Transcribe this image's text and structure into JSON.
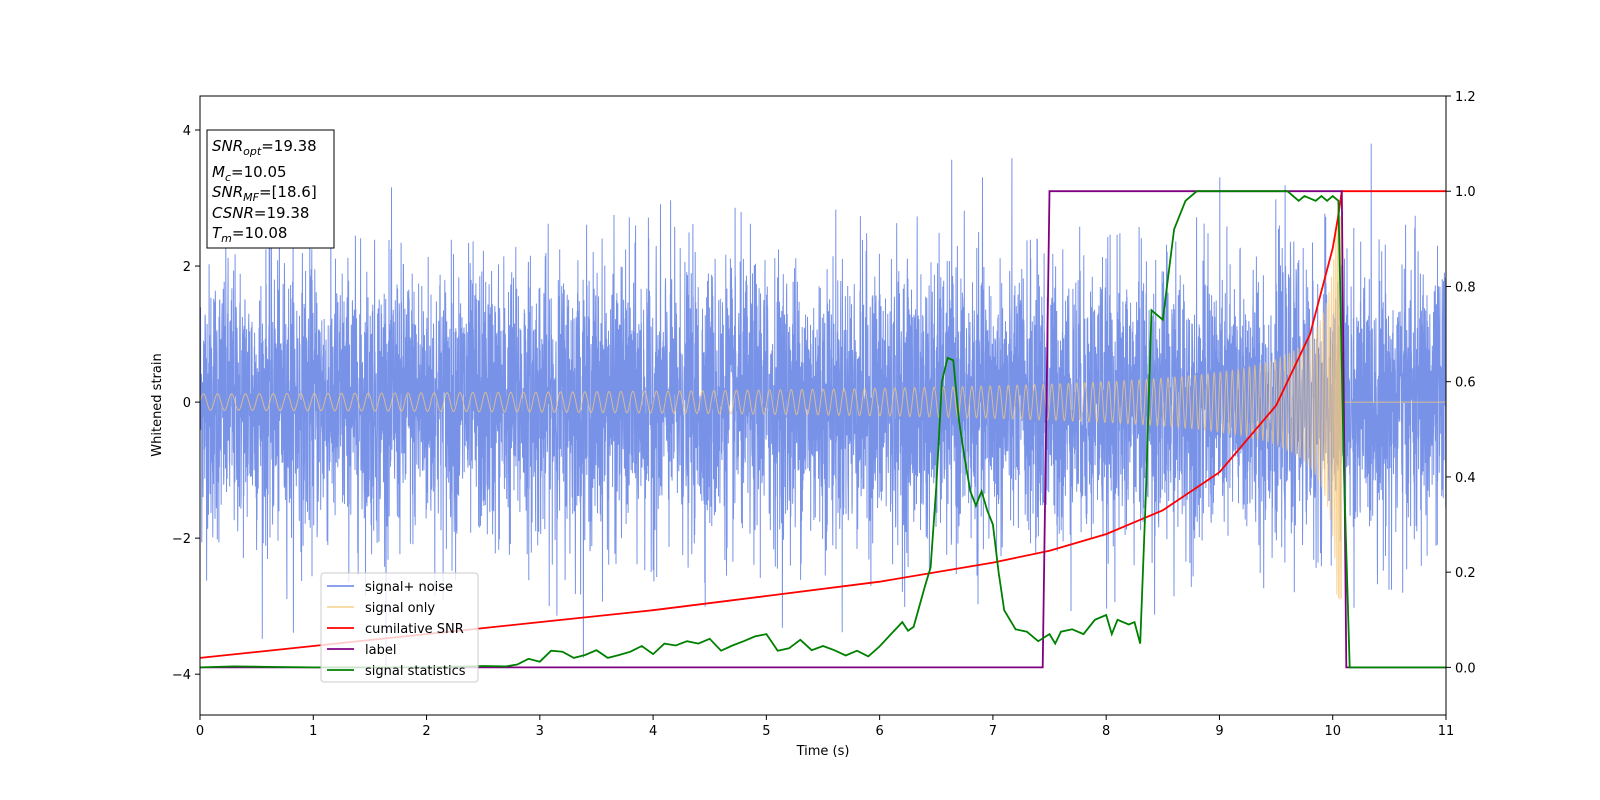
{
  "chart_data": {
    "type": "line",
    "xlabel": "Time (s)",
    "ylabel": "Whitened strain",
    "xlim": [
      0,
      11
    ],
    "ylim_left": [
      -4.6,
      4.5
    ],
    "ylim_right": [
      -0.1,
      1.2
    ],
    "x_ticks": [
      0,
      1,
      2,
      3,
      4,
      5,
      6,
      7,
      8,
      9,
      10,
      11
    ],
    "y_ticks_left": [
      -4,
      -2,
      0,
      2,
      4
    ],
    "y_ticks_right": [
      0.0,
      0.2,
      0.4,
      0.6,
      0.8,
      1.0,
      1.2
    ],
    "grid": false,
    "legend_position": "lower-left",
    "annotation": {
      "snr_opt": {
        "main": "SNR",
        "sub": "opt",
        "value": "=19.38"
      },
      "mc": {
        "main": "M",
        "sub": "c",
        "value": "=10.05"
      },
      "snr_mf": {
        "main": "SNR",
        "sub": "MF",
        "value": "=[18.6]"
      },
      "csnr": {
        "main": "CSNR",
        "sub": "",
        "value": "=19.38"
      },
      "tm": {
        "main": "T",
        "sub": "m",
        "value": "=10.08"
      }
    },
    "series": [
      {
        "name": "signal+ noise",
        "color": "#7892e8",
        "axis": "left",
        "noise_sigma": 1.0,
        "note_range": [
          -4.2,
          3.8
        ]
      },
      {
        "name": "signal only",
        "color": "#f5c87a",
        "axis": "left",
        "envelope": {
          "t_merger": 10.08,
          "amp_start": 0.12,
          "amp_at_10": 2.0
        }
      },
      {
        "name": "cumilative SNR",
        "color": "#ff0000",
        "axis": "right",
        "x": [
          0,
          1,
          2,
          3,
          4,
          5,
          6,
          7,
          7.5,
          8,
          8.5,
          9,
          9.5,
          9.8,
          10.0,
          10.05,
          10.08,
          11
        ],
        "y": [
          0.02,
          0.045,
          0.07,
          0.095,
          0.12,
          0.15,
          0.18,
          0.22,
          0.245,
          0.28,
          0.33,
          0.41,
          0.55,
          0.7,
          0.88,
          0.95,
          1.0,
          1.0
        ]
      },
      {
        "name": "label",
        "color": "#800080",
        "axis": "right",
        "x": [
          0,
          7.44,
          7.5,
          10.08,
          10.12,
          11
        ],
        "y": [
          0,
          0,
          1,
          1,
          0,
          0
        ]
      },
      {
        "name": "signal statistics",
        "color": "#008000",
        "axis": "right",
        "x": [
          0,
          0.3,
          0.6,
          1.0,
          1.5,
          2.0,
          2.5,
          2.7,
          2.8,
          2.9,
          3.0,
          3.1,
          3.2,
          3.3,
          3.4,
          3.5,
          3.6,
          3.7,
          3.8,
          3.9,
          4.0,
          4.1,
          4.2,
          4.3,
          4.4,
          4.5,
          4.6,
          4.7,
          4.8,
          4.9,
          5.0,
          5.1,
          5.2,
          5.3,
          5.4,
          5.5,
          5.6,
          5.7,
          5.8,
          5.9,
          6.0,
          6.1,
          6.2,
          6.25,
          6.3,
          6.4,
          6.45,
          6.5,
          6.55,
          6.6,
          6.65,
          6.7,
          6.75,
          6.8,
          6.85,
          6.9,
          6.95,
          7.0,
          7.05,
          7.1,
          7.2,
          7.3,
          7.4,
          7.5,
          7.55,
          7.6,
          7.7,
          7.8,
          7.9,
          8.0,
          8.05,
          8.1,
          8.2,
          8.25,
          8.3,
          8.35,
          8.4,
          8.5,
          8.6,
          8.7,
          8.8,
          9.0,
          9.2,
          9.4,
          9.6,
          9.7,
          9.75,
          9.8,
          9.85,
          9.9,
          9.95,
          10.0,
          10.05,
          10.1,
          10.15,
          11
        ],
        "y": [
          0.0,
          0.002,
          0.001,
          0.0,
          0.0,
          0.0,
          0.003,
          0.002,
          0.006,
          0.018,
          0.012,
          0.035,
          0.033,
          0.02,
          0.026,
          0.036,
          0.02,
          0.026,
          0.033,
          0.045,
          0.028,
          0.05,
          0.046,
          0.055,
          0.05,
          0.06,
          0.035,
          0.046,
          0.055,
          0.065,
          0.07,
          0.035,
          0.04,
          0.058,
          0.036,
          0.045,
          0.036,
          0.025,
          0.035,
          0.023,
          0.044,
          0.07,
          0.095,
          0.077,
          0.085,
          0.17,
          0.21,
          0.38,
          0.6,
          0.65,
          0.645,
          0.52,
          0.44,
          0.37,
          0.34,
          0.37,
          0.33,
          0.3,
          0.2,
          0.12,
          0.08,
          0.075,
          0.055,
          0.07,
          0.05,
          0.075,
          0.08,
          0.07,
          0.1,
          0.11,
          0.07,
          0.1,
          0.09,
          0.095,
          0.05,
          0.36,
          0.75,
          0.73,
          0.92,
          0.98,
          1.0,
          1.0,
          1.0,
          1.0,
          1.0,
          0.98,
          0.99,
          0.985,
          0.98,
          0.99,
          0.98,
          0.99,
          0.98,
          0.4,
          0.0,
          0.0
        ]
      }
    ]
  }
}
